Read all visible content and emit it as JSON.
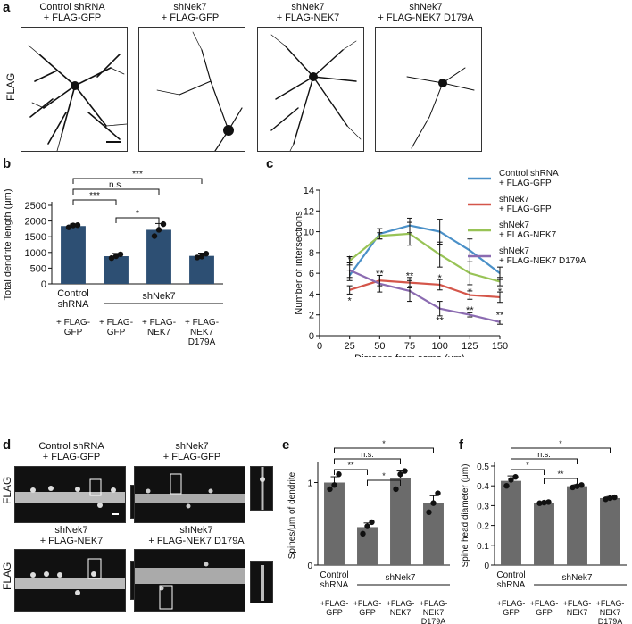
{
  "panel_a": {
    "letter": "a",
    "ylabel": "FLAG",
    "conditions": [
      "Control shRNA\n+ FLAG-GFP",
      "shNek7\n+ FLAG-GFP",
      "shNek7\n+ FLAG-NEK7",
      "shNek7\n+ FLAG-NEK7 D179A"
    ]
  },
  "panel_b": {
    "letter": "b",
    "chart_data": {
      "type": "bar",
      "ylabel": "Total dendrite length (μm)",
      "ylim": [
        0,
        2500
      ],
      "yticks": [
        "0",
        "500",
        "1000",
        "1500",
        "2000",
        "2500"
      ],
      "categories": [
        "Control shRNA",
        "shNek7",
        "shNek7",
        "shNek7"
      ],
      "values": [
        1840,
        880,
        1720,
        890
      ],
      "errors": [
        60,
        90,
        200,
        90
      ],
      "points": [
        [
          1800,
          1860,
          1870
        ],
        [
          820,
          880,
          940
        ],
        [
          1520,
          1720,
          1900
        ],
        [
          840,
          870,
          960
        ]
      ],
      "color": "#2d4f73",
      "group_label_control": "Control\nshRNA",
      "group_label_sh": "shNek7",
      "sublabels": [
        "+ FLAG-\nGFP",
        "+ FLAG-\nGFP",
        "+ FLAG-\nNEK7",
        "+ FLAG-\nNEK7\nD179A"
      ],
      "significance": [
        {
          "from": 0,
          "to": 3,
          "label": "***"
        },
        {
          "from": 0,
          "to": 2,
          "label": "n.s."
        },
        {
          "from": 0,
          "to": 1,
          "label": "***"
        },
        {
          "from": 1,
          "to": 2,
          "label": "*"
        }
      ]
    }
  },
  "panel_c": {
    "letter": "c",
    "chart_data": {
      "type": "line",
      "xlabel": "Distance from soma (μm)",
      "ylabel": "Number of intersections",
      "xlim": [
        0,
        150
      ],
      "ylim": [
        0,
        14
      ],
      "x": [
        25,
        50,
        75,
        100,
        125,
        150
      ],
      "xticks": [
        "0",
        "25",
        "50",
        "75",
        "100",
        "125",
        "150"
      ],
      "yticks": [
        "0",
        "2",
        "4",
        "6",
        "8",
        "10",
        "12",
        "14"
      ],
      "series": [
        {
          "name": "Control shRNA\n+ FLAG-GFP",
          "color": "#4a90c8",
          "values": [
            5.8,
            9.8,
            10.6,
            10.0,
            8.2,
            6.0
          ],
          "errors": [
            0.5,
            0.5,
            0.7,
            1.2,
            1.1,
            0.6
          ]
        },
        {
          "name": "shNek7\n+ FLAG-GFP",
          "color": "#d4564a",
          "values": [
            4.4,
            5.3,
            5.1,
            4.9,
            3.9,
            3.7
          ],
          "errors": [
            0.4,
            0.5,
            0.5,
            0.5,
            0.4,
            0.5
          ]
        },
        {
          "name": "shNek7\n+ FLAG-NEK7",
          "color": "#98c356",
          "values": [
            7.2,
            9.6,
            9.8,
            7.8,
            6.0,
            5.2
          ],
          "errors": [
            0.4,
            0.3,
            1.1,
            1.2,
            1.1,
            0.4
          ]
        },
        {
          "name": "shNek7\n+ FLAG-NEK7 D179A",
          "color": "#8b6bb1",
          "values": [
            6.3,
            5.0,
            4.3,
            2.6,
            2.0,
            1.3
          ],
          "errors": [
            0.7,
            0.8,
            1.0,
            0.7,
            0.2,
            0.2
          ]
        }
      ],
      "annotations": [
        {
          "x": 25,
          "y": 7.4,
          "label": "*"
        },
        {
          "x": 25,
          "y": 3.4,
          "label": "*"
        },
        {
          "x": 50,
          "y": 6.0,
          "label": "**"
        },
        {
          "x": 75,
          "y": 5.8,
          "label": "**"
        },
        {
          "x": 75,
          "y": 4.6,
          "label": "*"
        },
        {
          "x": 100,
          "y": 5.6,
          "label": "*"
        },
        {
          "x": 100,
          "y": 1.5,
          "label": "**"
        },
        {
          "x": 125,
          "y": 4.3,
          "label": "*"
        },
        {
          "x": 125,
          "y": 2.5,
          "label": "**"
        },
        {
          "x": 150,
          "y": 4.3,
          "label": "*"
        },
        {
          "x": 150,
          "y": 2.0,
          "label": "**"
        }
      ]
    }
  },
  "panel_d": {
    "letter": "d",
    "ylabel": "FLAG",
    "conditions": [
      "Control shRNA\n+ FLAG-GFP",
      "shNek7\n+ FLAG-GFP",
      "shNek7\n+ FLAG-NEK7",
      "shNek7\n+ FLAG-NEK7 D179A"
    ]
  },
  "panel_e": {
    "letter": "e",
    "chart_data": {
      "type": "bar",
      "ylabel": "Spines/μm of dendrite",
      "ylim": [
        0,
        1.2
      ],
      "yticks": [
        "0",
        "1"
      ],
      "values": [
        1.0,
        0.46,
        1.05,
        0.75
      ],
      "errors": [
        0.07,
        0.05,
        0.09,
        0.09
      ],
      "points": [
        [
          0.92,
          0.97,
          1.1
        ],
        [
          0.38,
          0.47,
          0.52
        ],
        [
          0.92,
          1.1,
          1.14
        ],
        [
          0.64,
          0.75,
          0.87
        ]
      ],
      "color": "#6b6b6b",
      "group_label_control": "Control\nshRNA",
      "group_label_sh": "shNek7",
      "sublabels": [
        "+FLAG-\nGFP",
        "+FLAG-\nGFP",
        "+FLAG-\nNEK7",
        "+FLAG-\nNEK7\nD179A"
      ],
      "significance": [
        {
          "from": 0,
          "to": 3,
          "label": "*"
        },
        {
          "from": 0,
          "to": 2,
          "label": "n.s."
        },
        {
          "from": 0,
          "to": 1,
          "label": "**"
        },
        {
          "from": 1,
          "to": 2,
          "label": "*"
        }
      ]
    }
  },
  "panel_f": {
    "letter": "f",
    "chart_data": {
      "type": "bar",
      "ylabel": "Spine head diameter (μm)",
      "ylim": [
        0,
        0.5
      ],
      "yticks": [
        "0",
        "0.1",
        "0.2",
        "0.3",
        "0.4",
        "0.5"
      ],
      "values": [
        0.425,
        0.315,
        0.398,
        0.338
      ],
      "errors": [
        0.025,
        0.004,
        0.008,
        0.008
      ],
      "points": [
        [
          0.4,
          0.43,
          0.445
        ],
        [
          0.312,
          0.315,
          0.318
        ],
        [
          0.392,
          0.398,
          0.404
        ],
        [
          0.332,
          0.338,
          0.342
        ]
      ],
      "color": "#6b6b6b",
      "group_label_control": "Control\nshRNA",
      "group_label_sh": "shNek7",
      "sublabels": [
        "+FLAG-\nGFP",
        "+FLAG-\nGFP",
        "+FLAG-\nNEK7",
        "+FLAG-\nNEK7\nD179A"
      ],
      "significance": [
        {
          "from": 0,
          "to": 3,
          "label": "*"
        },
        {
          "from": 0,
          "to": 2,
          "label": "n.s."
        },
        {
          "from": 0,
          "to": 1,
          "label": "*"
        },
        {
          "from": 1,
          "to": 2,
          "label": "**"
        }
      ]
    }
  }
}
